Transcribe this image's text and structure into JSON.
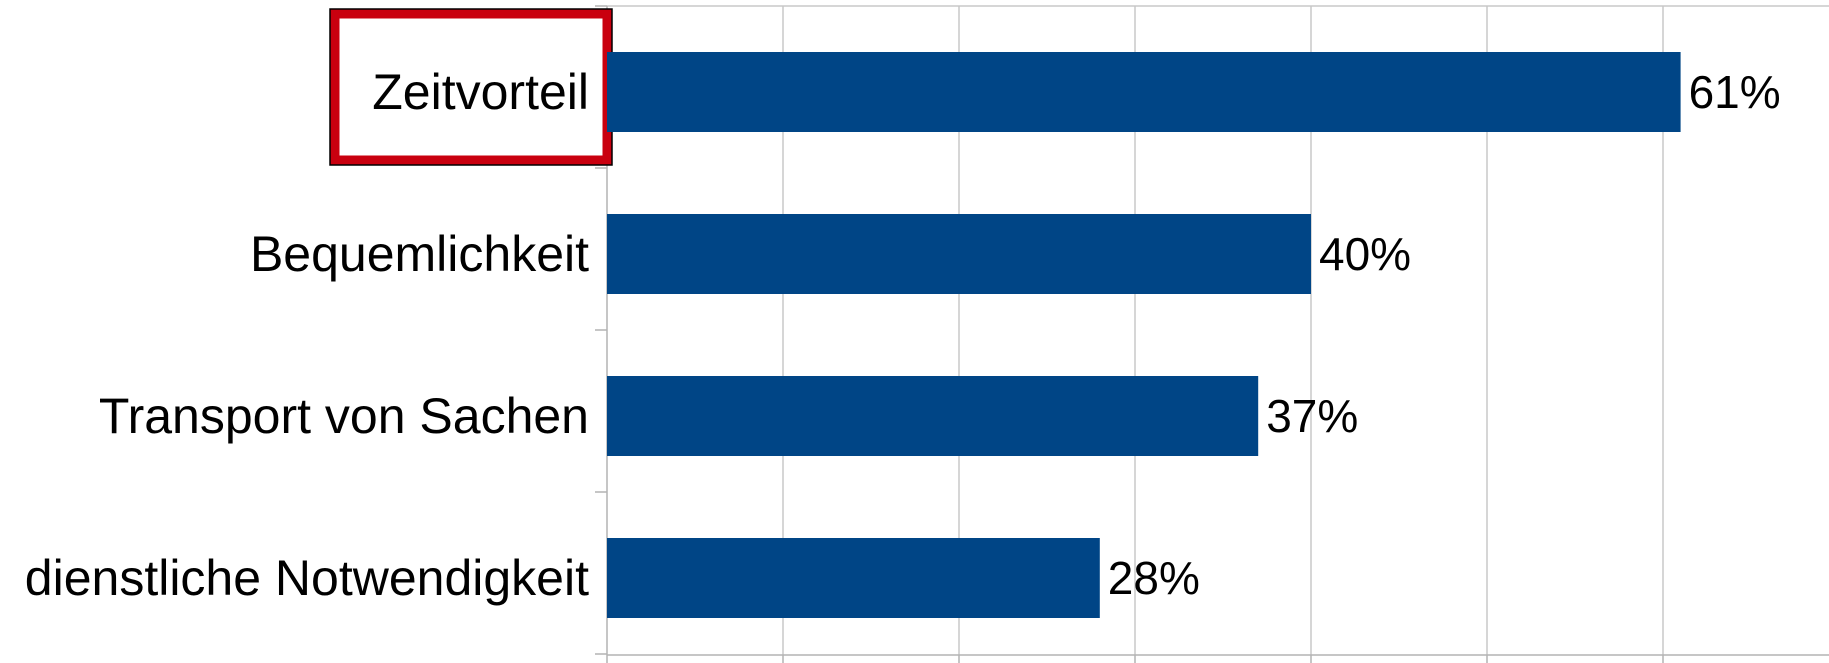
{
  "chart_data": {
    "type": "bar",
    "orientation": "horizontal",
    "categories": [
      "Zeitvorteil",
      "Bequemlichkeit",
      "Transport von Sachen",
      "dienstliche Notwendigkeit"
    ],
    "values": [
      61,
      40,
      37,
      28
    ],
    "value_labels": [
      "61%",
      "40%",
      "37%",
      "28%"
    ],
    "unit": "%",
    "xlim": [
      0,
      70
    ],
    "x_grid_step": 10,
    "grid": true,
    "highlighted_category": "Zeitvorteil",
    "colors": {
      "bar": "#004586",
      "highlight_border": "#c9000f",
      "grid": "#c8c8c8"
    }
  }
}
